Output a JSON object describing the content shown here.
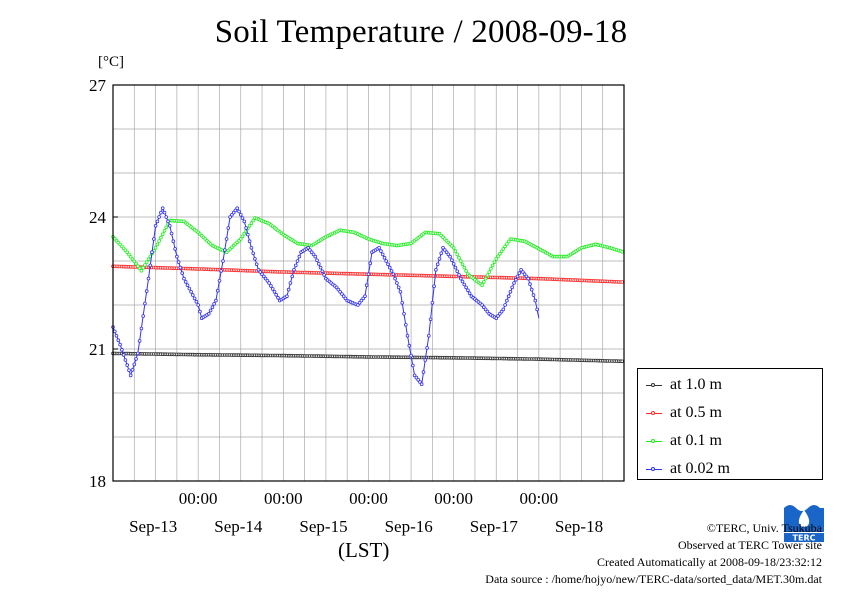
{
  "title": "Soil Temperature / 2008-09-18",
  "unit_label": "[°C]",
  "xaxis_label": "(LST)",
  "credits": {
    "copyright": "©TERC, Univ. Tsukuba",
    "observed": "Observed at TERC Tower site",
    "created": "Created Automatically at 2008-09-18/23:32:12",
    "source": "Data source : /home/hojyo/new/TERC-data/sorted_data/MET.30m.dat"
  },
  "logo": {
    "icon": "terc-logo-icon",
    "text": "TERC",
    "color": "#1a66c8"
  },
  "chart_data": {
    "type": "line",
    "title": "Soil Temperature / 2008-09-18",
    "ylabel": "[°C]",
    "xlabel": "(LST)",
    "ylim": [
      18,
      27
    ],
    "yticks": [
      "18",
      "21",
      "24",
      "27"
    ],
    "xlim_hours": [
      0,
      144
    ],
    "x_ticks": [
      {
        "hour": 24,
        "time": "00:00",
        "date": "Sep-13"
      },
      {
        "hour": 48,
        "time": "00:00",
        "date": "Sep-14"
      },
      {
        "hour": 72,
        "time": "00:00",
        "date": "Sep-15"
      },
      {
        "hour": 96,
        "time": "00:00",
        "date": "Sep-16"
      },
      {
        "hour": 120,
        "time": "00:00",
        "date": "Sep-17"
      },
      {
        "hour": 144,
        "time": "",
        "date": "Sep-18"
      }
    ],
    "grid": true,
    "legend_position": "right",
    "series": [
      {
        "name": "at 1.0 m",
        "color": "#333333",
        "points": [
          [
            0,
            20.9
          ],
          [
            24,
            20.87
          ],
          [
            48,
            20.85
          ],
          [
            72,
            20.82
          ],
          [
            96,
            20.8
          ],
          [
            120,
            20.77
          ],
          [
            144,
            20.72
          ]
        ]
      },
      {
        "name": "at 0.5 m",
        "color": "#ff2a2a",
        "points": [
          [
            0,
            22.88
          ],
          [
            24,
            22.82
          ],
          [
            48,
            22.75
          ],
          [
            72,
            22.7
          ],
          [
            96,
            22.65
          ],
          [
            120,
            22.6
          ],
          [
            144,
            22.52
          ]
        ]
      },
      {
        "name": "at 0.1 m",
        "color": "#22ee22",
        "points": [
          [
            0,
            23.55
          ],
          [
            4,
            23.2
          ],
          [
            8,
            22.78
          ],
          [
            12,
            23.3
          ],
          [
            16,
            23.92
          ],
          [
            20,
            23.9
          ],
          [
            24,
            23.65
          ],
          [
            28,
            23.35
          ],
          [
            32,
            23.2
          ],
          [
            36,
            23.5
          ],
          [
            40,
            23.98
          ],
          [
            44,
            23.85
          ],
          [
            48,
            23.6
          ],
          [
            52,
            23.4
          ],
          [
            56,
            23.35
          ],
          [
            60,
            23.55
          ],
          [
            64,
            23.7
          ],
          [
            68,
            23.65
          ],
          [
            72,
            23.5
          ],
          [
            76,
            23.4
          ],
          [
            80,
            23.35
          ],
          [
            84,
            23.4
          ],
          [
            88,
            23.65
          ],
          [
            92,
            23.62
          ],
          [
            96,
            23.3
          ],
          [
            100,
            22.7
          ],
          [
            104,
            22.45
          ],
          [
            108,
            23.05
          ],
          [
            112,
            23.5
          ],
          [
            116,
            23.45
          ],
          [
            120,
            23.28
          ],
          [
            124,
            23.1
          ],
          [
            128,
            23.1
          ],
          [
            132,
            23.3
          ],
          [
            136,
            23.38
          ],
          [
            140,
            23.3
          ],
          [
            144,
            23.2
          ]
        ]
      },
      {
        "name": "at 0.02 m",
        "color": "#3333ee",
        "points": [
          [
            0,
            21.5
          ],
          [
            2,
            21.1
          ],
          [
            5,
            20.4
          ],
          [
            7,
            20.9
          ],
          [
            10,
            22.6
          ],
          [
            12,
            23.8
          ],
          [
            14,
            24.2
          ],
          [
            16,
            23.8
          ],
          [
            18,
            23.1
          ],
          [
            20,
            22.6
          ],
          [
            22,
            22.3
          ],
          [
            24,
            22.0
          ],
          [
            25,
            21.7
          ],
          [
            27,
            21.8
          ],
          [
            29,
            22.1
          ],
          [
            31,
            23.0
          ],
          [
            33,
            24.0
          ],
          [
            35,
            24.2
          ],
          [
            37,
            23.9
          ],
          [
            39,
            23.3
          ],
          [
            41,
            22.8
          ],
          [
            44,
            22.5
          ],
          [
            47,
            22.1
          ],
          [
            49,
            22.2
          ],
          [
            51,
            22.8
          ],
          [
            53,
            23.2
          ],
          [
            55,
            23.3
          ],
          [
            57,
            23.1
          ],
          [
            60,
            22.6
          ],
          [
            63,
            22.4
          ],
          [
            66,
            22.1
          ],
          [
            69,
            22.0
          ],
          [
            71,
            22.2
          ],
          [
            73,
            23.2
          ],
          [
            75,
            23.3
          ],
          [
            77,
            23.0
          ],
          [
            79,
            22.7
          ],
          [
            81,
            22.3
          ],
          [
            83,
            21.3
          ],
          [
            85,
            20.4
          ],
          [
            87,
            20.2
          ],
          [
            89,
            21.3
          ],
          [
            91,
            22.8
          ],
          [
            93,
            23.3
          ],
          [
            95,
            23.1
          ],
          [
            98,
            22.6
          ],
          [
            101,
            22.2
          ],
          [
            104,
            22.0
          ],
          [
            106,
            21.8
          ],
          [
            108,
            21.7
          ],
          [
            110,
            21.9
          ],
          [
            113,
            22.5
          ],
          [
            115,
            22.8
          ],
          [
            117,
            22.6
          ],
          [
            119,
            22.1
          ],
          [
            120,
            21.7
          ]
        ]
      }
    ]
  }
}
